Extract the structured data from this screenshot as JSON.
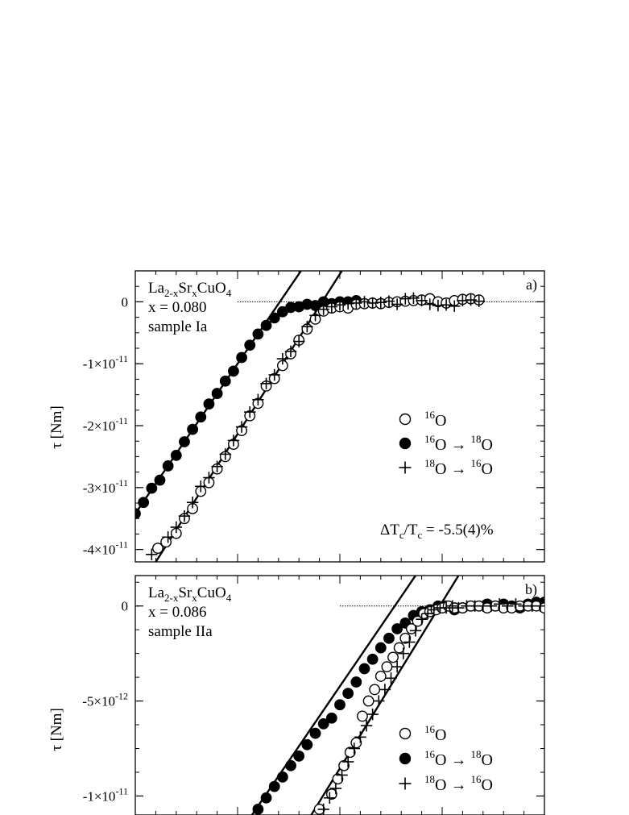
{
  "chart_data": [
    {
      "panel": "a)",
      "type": "scatter",
      "ylabel": "τ [Nm]",
      "ylim": [
        -4.2e-11,
        5e-12
      ],
      "xlim": [
        0,
        20
      ],
      "y_ticks": [
        0,
        -1e-11,
        -2e-11,
        -3e-11,
        -4e-11
      ],
      "y_tick_labels": [
        {
          "base": "0",
          "exp": ""
        },
        {
          "base": "-1×10",
          "exp": "-11"
        },
        {
          "base": "-2×10",
          "exp": "-11"
        },
        {
          "base": "-3×10",
          "exp": "-11"
        },
        {
          "base": "-4×10",
          "exp": "-11"
        }
      ],
      "annotation_lines": [
        {
          "base": "La",
          "sub": "2-x",
          "mid": "Sr",
          "sub2": "x",
          "tail": "CuO",
          "sub3": "4"
        },
        {
          "text": "x = 0.080"
        },
        {
          "text": "sample Ia"
        }
      ],
      "shift_label": {
        "pre": "ΔT",
        "sub1": "c",
        "mid": "/T",
        "sub2": "c",
        "post": " = -5.5(4)%"
      },
      "legend": [
        {
          "marker": "open-circle",
          "parts": [
            {
              "sup": "16"
            },
            {
              "t": "O"
            }
          ]
        },
        {
          "marker": "filled-circle",
          "parts": [
            {
              "sup": "16"
            },
            {
              "t": "O"
            },
            {
              "arrow": true
            },
            {
              "sup": "18"
            },
            {
              "t": "O"
            }
          ]
        },
        {
          "marker": "plus",
          "parts": [
            {
              "sup": "18"
            },
            {
              "t": "O"
            },
            {
              "arrow": true
            },
            {
              "sup": "16"
            },
            {
              "t": "O"
            }
          ]
        }
      ],
      "legend_position": "right-middle",
      "series": [
        {
          "marker": "filled-circle",
          "x": [
            0.0,
            0.4,
            0.8,
            1.2,
            1.6,
            2.0,
            2.4,
            2.8,
            3.2,
            3.6,
            4.0,
            4.4,
            4.8,
            5.2,
            5.6,
            6.0,
            6.4,
            6.8,
            7.2,
            7.6,
            8.0,
            8.4,
            8.8,
            9.2,
            9.6,
            10.0,
            10.4,
            10.8
          ],
          "y": [
            -3.42e-11,
            -3.24e-11,
            -3.01e-11,
            -2.88e-11,
            -2.65e-11,
            -2.48e-11,
            -2.26e-11,
            -2.06e-11,
            -1.86e-11,
            -1.65e-11,
            -1.48e-11,
            -1.28e-11,
            -1.12e-11,
            -9e-12,
            -7e-12,
            -5.2e-12,
            -3.8e-12,
            -2.6e-12,
            -1.6e-12,
            -9e-13,
            -8e-13,
            -4e-13,
            -6e-13,
            0.0,
            -3e-13,
            0.0,
            0.0,
            2e-13
          ]
        },
        {
          "marker": "open-circle",
          "x": [
            1.1,
            1.5,
            2.0,
            2.4,
            2.8,
            3.2,
            3.6,
            4.0,
            4.4,
            4.8,
            5.2,
            5.6,
            6.0,
            6.4,
            6.8,
            7.2,
            7.6,
            8.0,
            8.4,
            8.8,
            9.2,
            9.6,
            10.0,
            10.4,
            10.8,
            11.2,
            11.6,
            12.0,
            12.4,
            12.8,
            13.2,
            13.6,
            14.0,
            14.4,
            14.8,
            15.2,
            15.6,
            16.0,
            16.4,
            16.8
          ],
          "y": [
            -3.98e-11,
            -3.88e-11,
            -3.74e-11,
            -3.5e-11,
            -3.34e-11,
            -3.06e-11,
            -2.92e-11,
            -2.7e-11,
            -2.5e-11,
            -2.3e-11,
            -2.08e-11,
            -1.84e-11,
            -1.64e-11,
            -1.36e-11,
            -1.24e-11,
            -1.03e-11,
            -8.4e-12,
            -6.2e-12,
            -4.4e-12,
            -2.8e-12,
            -1.5e-12,
            -1e-12,
            -8e-13,
            -1e-12,
            -4e-13,
            -3e-13,
            -2e-13,
            -3e-13,
            -1e-13,
            0.0,
            1e-13,
            2e-13,
            3e-13,
            5e-13,
            0.0,
            -2e-13,
            2e-13,
            4e-13,
            5e-13,
            3e-13
          ]
        },
        {
          "marker": "plus",
          "x": [
            0.8,
            1.6,
            2.0,
            2.4,
            2.8,
            3.2,
            3.6,
            4.0,
            4.4,
            4.8,
            5.2,
            5.6,
            6.0,
            6.4,
            6.8,
            7.2,
            7.6,
            8.0,
            8.4,
            8.8,
            9.2,
            9.6,
            10.0,
            10.4,
            10.8,
            11.2,
            11.6,
            12.0,
            12.4,
            12.8,
            13.2,
            13.6,
            14.0,
            14.4,
            14.8,
            15.2,
            15.6,
            16.0,
            16.4,
            16.8
          ],
          "y": [
            -4.08e-11,
            -3.8e-11,
            -3.64e-11,
            -3.46e-11,
            -3.24e-11,
            -2.98e-11,
            -2.84e-11,
            -2.66e-11,
            -2.46e-11,
            -2.24e-11,
            -2.02e-11,
            -1.78e-11,
            -1.58e-11,
            -1.32e-11,
            -1.18e-11,
            -9.2e-12,
            -8e-12,
            -6.4e-12,
            -4e-12,
            -2.2e-12,
            -1.2e-12,
            -8e-13,
            -5e-13,
            -3e-13,
            -2e-13,
            0.0,
            -2e-13,
            -1e-13,
            1e-13,
            -4e-13,
            5e-13,
            6e-13,
            2e-13,
            -4e-13,
            -6e-13,
            -5e-13,
            -7e-13,
            2e-13,
            3e-13,
            1e-13
          ]
        }
      ],
      "fit_lines": [
        {
          "x": [
            0.0,
            8.1
          ],
          "y": [
            -3.42e-11,
            5e-12
          ]
        },
        {
          "x": [
            1.0,
            10.1
          ],
          "y": [
            -4.2e-11,
            5e-12
          ]
        }
      ],
      "baseline": {
        "x": [
          5.0,
          20.0
        ],
        "y": [
          0,
          0
        ]
      }
    },
    {
      "panel": "b)",
      "type": "scatter",
      "ylabel": "τ [Nm]",
      "ylim": [
        -1.1e-11,
        1.6e-12
      ],
      "xlim": [
        0,
        20
      ],
      "y_ticks": [
        0,
        -5e-12,
        -1e-11
      ],
      "y_tick_labels": [
        {
          "base": "0",
          "exp": ""
        },
        {
          "base": "-5×10",
          "exp": "-12"
        },
        {
          "base": "-1×10",
          "exp": "-11"
        }
      ],
      "annotation_lines": [
        {
          "base": "La",
          "sub": "2-x",
          "mid": "Sr",
          "sub2": "x",
          "tail": "CuO",
          "sub3": "4"
        },
        {
          "text": "x = 0.086"
        },
        {
          "text": "sample IIa"
        }
      ],
      "legend": [
        {
          "marker": "open-circle",
          "parts": [
            {
              "sup": "16"
            },
            {
              "t": "O"
            }
          ]
        },
        {
          "marker": "filled-circle",
          "parts": [
            {
              "sup": "16"
            },
            {
              "t": "O"
            },
            {
              "arrow": true
            },
            {
              "sup": "18"
            },
            {
              "t": "O"
            }
          ]
        },
        {
          "marker": "plus",
          "parts": [
            {
              "sup": "18"
            },
            {
              "t": "O"
            },
            {
              "arrow": true
            },
            {
              "sup": "16"
            },
            {
              "t": "O"
            }
          ]
        }
      ],
      "legend_position": "right-lower",
      "series": [
        {
          "marker": "filled-circle",
          "x": [
            6.0,
            6.4,
            6.8,
            7.2,
            7.6,
            8.0,
            8.4,
            8.8,
            9.2,
            9.6,
            10.0,
            10.4,
            10.8,
            11.2,
            11.6,
            12.0,
            12.4,
            12.8,
            13.2,
            13.6,
            14.0,
            14.4,
            14.8,
            15.2,
            15.6,
            16.0,
            16.4,
            16.8,
            17.2,
            17.6,
            18.0,
            18.4,
            18.8,
            19.2,
            19.6,
            20.0
          ],
          "y": [
            -1.07e-11,
            -1.01e-11,
            -9.5e-12,
            -9e-12,
            -8.4e-12,
            -7.9e-12,
            -7.3e-12,
            -6.7e-12,
            -6.2e-12,
            -5.9e-12,
            -5.2e-12,
            -4.6e-12,
            -4e-12,
            -3.3e-12,
            -2.8e-12,
            -2.2e-12,
            -1.7e-12,
            -1.2e-12,
            -9e-13,
            -5e-13,
            -3e-13,
            -2e-13,
            0.0,
            0.0,
            -2e-13,
            -1e-13,
            0.0,
            0.0,
            1e-13,
            0.0,
            1e-13,
            0.0,
            -1e-13,
            1e-13,
            2e-13,
            2e-13
          ]
        },
        {
          "marker": "open-circle",
          "x": [
            9.0,
            9.6,
            9.9,
            10.2,
            10.5,
            10.8,
            11.1,
            11.4,
            11.7,
            12.0,
            12.3,
            12.6,
            12.9,
            13.2,
            13.5,
            13.8,
            14.1,
            14.4,
            14.7,
            15.0,
            15.3,
            15.6,
            16.0,
            16.4,
            16.8,
            17.2,
            17.6,
            18.0,
            18.4,
            18.8,
            19.2,
            19.6,
            20.0
          ],
          "y": [
            -1.07e-11,
            -9.9e-12,
            -9.1e-12,
            -8.4e-12,
            -7.7e-12,
            -7.2e-12,
            -5.8e-12,
            -5e-12,
            -4.4e-12,
            -3.7e-12,
            -3.2e-12,
            -2.7e-12,
            -2.2e-12,
            -1.7e-12,
            -1.2e-12,
            -8e-13,
            -4e-13,
            -3e-13,
            -2e-13,
            -1e-13,
            0.0,
            -1e-13,
            -1e-13,
            0.0,
            0.0,
            -1e-13,
            0.0,
            -1e-13,
            -1e-13,
            0.0,
            0.0,
            0.0,
            -1e-13
          ]
        },
        {
          "marker": "plus",
          "x": [
            9.2,
            9.5,
            9.8,
            10.1,
            10.4,
            10.7,
            11.0,
            11.3,
            11.6,
            11.9,
            12.2,
            12.5,
            12.8,
            13.1,
            13.4,
            13.7,
            14.0,
            14.3,
            14.6,
            14.9,
            15.2,
            15.5,
            15.8,
            16.2,
            16.6,
            17.0,
            17.4,
            17.8,
            18.2,
            18.6,
            19.0,
            19.4,
            19.8
          ],
          "y": [
            -1.07e-11,
            -1.01e-11,
            -9.6e-12,
            -8.9e-12,
            -8.2e-12,
            -7.5e-12,
            -6.9e-12,
            -6.3e-12,
            -5.7e-12,
            -5e-12,
            -4.4e-12,
            -3.8e-12,
            -3.2e-12,
            -2.5e-12,
            -1.9e-12,
            -1.3e-12,
            -7e-13,
            -4e-13,
            -2e-13,
            -1e-13,
            -1e-13,
            0.0,
            -1e-13,
            0.0,
            0.0,
            0.0,
            0.0,
            1e-13,
            0.0,
            1e-13,
            0.0,
            0.0,
            0.0
          ]
        }
      ],
      "fit_lines": [
        {
          "x": [
            5.7,
            13.7
          ],
          "y": [
            -1.1e-11,
            1.6e-12
          ]
        },
        {
          "x": [
            8.6,
            15.8
          ],
          "y": [
            -1.1e-11,
            1.6e-12
          ]
        }
      ],
      "baseline": {
        "x": [
          10.0,
          20.0
        ],
        "y": [
          0,
          0
        ]
      }
    }
  ]
}
